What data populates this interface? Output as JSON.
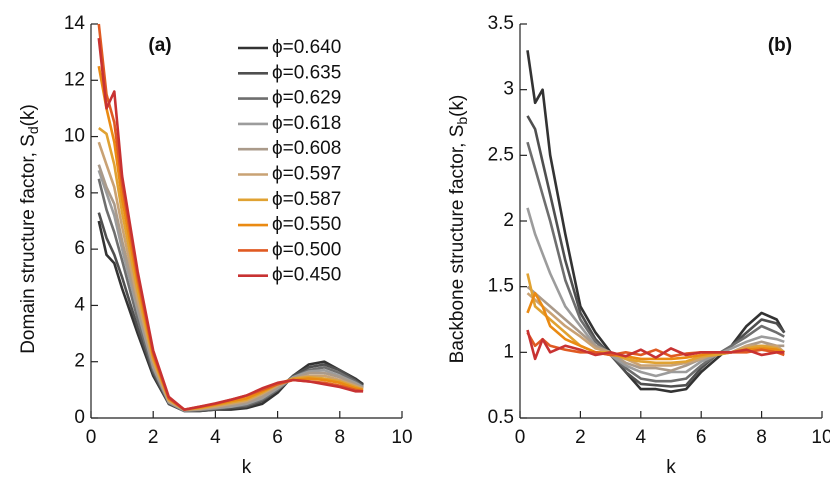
{
  "chart_data": [
    {
      "type": "line",
      "title": "(a)",
      "xlabel": "k",
      "ylabel": [
        "Domain structure factor, S",
        "d",
        "(k)"
      ],
      "xlim": [
        0,
        10
      ],
      "ylim": [
        0,
        14
      ],
      "xticks": [
        0,
        2,
        4,
        6,
        8,
        10
      ],
      "yticks": [
        0,
        2,
        4,
        6,
        8,
        10,
        12,
        14
      ],
      "x": [
        0.25,
        0.5,
        0.75,
        1,
        1.5,
        2,
        2.5,
        3,
        3.5,
        4,
        4.5,
        5,
        5.5,
        6,
        6.5,
        7,
        7.5,
        8,
        8.5,
        8.75
      ],
      "series": [
        {
          "name": "ϕ=0.640",
          "color": "#333333",
          "values": [
            7.0,
            5.8,
            5.5,
            4.6,
            3.0,
            1.5,
            0.5,
            0.25,
            0.25,
            0.3,
            0.3,
            0.35,
            0.5,
            0.9,
            1.5,
            1.9,
            2.0,
            1.7,
            1.4,
            1.2
          ]
        },
        {
          "name": "ϕ=0.635",
          "color": "#4f4f4f",
          "values": [
            7.3,
            6.4,
            5.8,
            5.0,
            3.2,
            1.6,
            0.5,
            0.25,
            0.25,
            0.3,
            0.35,
            0.4,
            0.6,
            1.0,
            1.5,
            1.8,
            1.9,
            1.7,
            1.35,
            1.15
          ]
        },
        {
          "name": "ϕ=0.629",
          "color": "#6e6e6e",
          "values": [
            8.5,
            7.4,
            6.6,
            5.6,
            3.5,
            1.7,
            0.55,
            0.25,
            0.28,
            0.33,
            0.4,
            0.45,
            0.65,
            1.0,
            1.45,
            1.7,
            1.8,
            1.6,
            1.3,
            1.1
          ]
        },
        {
          "name": "ϕ=0.618",
          "color": "#9c9c9c",
          "values": [
            8.8,
            8.0,
            7.2,
            6.0,
            3.8,
            1.8,
            0.55,
            0.27,
            0.3,
            0.35,
            0.4,
            0.5,
            0.7,
            1.05,
            1.45,
            1.65,
            1.7,
            1.5,
            1.25,
            1.1
          ]
        },
        {
          "name": "ϕ=0.608",
          "color": "#aa9a8a",
          "values": [
            9.0,
            8.2,
            7.6,
            6.3,
            4.0,
            1.9,
            0.6,
            0.28,
            0.3,
            0.38,
            0.45,
            0.55,
            0.75,
            1.1,
            1.4,
            1.6,
            1.6,
            1.45,
            1.2,
            1.05
          ]
        },
        {
          "name": "ϕ=0.597",
          "color": "#c9a274",
          "values": [
            9.8,
            9.0,
            8.2,
            6.8,
            4.2,
            2.0,
            0.6,
            0.3,
            0.33,
            0.4,
            0.5,
            0.6,
            0.85,
            1.15,
            1.4,
            1.5,
            1.5,
            1.35,
            1.15,
            1.05
          ]
        },
        {
          "name": "ϕ=0.587",
          "color": "#e0a232",
          "values": [
            10.3,
            10.1,
            9.0,
            7.3,
            4.5,
            2.1,
            0.65,
            0.3,
            0.35,
            0.45,
            0.55,
            0.65,
            0.9,
            1.2,
            1.4,
            1.45,
            1.4,
            1.3,
            1.1,
            1.0
          ]
        },
        {
          "name": "ϕ=0.550",
          "color": "#ea8a12",
          "values": [
            12.5,
            11.0,
            9.8,
            7.8,
            4.8,
            2.2,
            0.7,
            0.3,
            0.38,
            0.48,
            0.6,
            0.7,
            0.95,
            1.2,
            1.35,
            1.4,
            1.35,
            1.25,
            1.05,
            1.0
          ]
        },
        {
          "name": "ϕ=0.500",
          "color": "#e05a22",
          "values": [
            14.0,
            11.5,
            10.5,
            8.3,
            5.0,
            2.3,
            0.7,
            0.3,
            0.4,
            0.5,
            0.65,
            0.8,
            1.0,
            1.2,
            1.35,
            1.3,
            1.25,
            1.15,
            1.0,
            0.95
          ]
        },
        {
          "name": "ϕ=0.450",
          "color": "#c83232",
          "values": [
            13.5,
            11.0,
            11.6,
            8.6,
            5.2,
            2.4,
            0.75,
            0.3,
            0.4,
            0.52,
            0.65,
            0.8,
            1.05,
            1.25,
            1.35,
            1.3,
            1.2,
            1.1,
            0.95,
            0.95
          ]
        }
      ]
    },
    {
      "type": "line",
      "title": "(b)",
      "xlabel": "k",
      "ylabel": [
        "Backbone structure factor, S",
        "b",
        "(k)"
      ],
      "xlim": [
        0,
        10
      ],
      "ylim": [
        0.5,
        3.5
      ],
      "xticks": [
        0,
        2,
        4,
        6,
        8,
        10
      ],
      "yticks": [
        0.5,
        1,
        1.5,
        2,
        2.5,
        3,
        3.5
      ],
      "x": [
        0.25,
        0.5,
        0.75,
        1,
        1.5,
        2,
        2.5,
        3,
        3.5,
        4,
        4.5,
        5,
        5.5,
        6,
        6.5,
        7,
        7.5,
        8,
        8.5,
        8.75
      ],
      "series": [
        {
          "color": "#333333",
          "values": [
            3.3,
            2.9,
            3.0,
            2.5,
            1.9,
            1.35,
            1.15,
            1.0,
            0.85,
            0.72,
            0.72,
            0.7,
            0.72,
            0.85,
            0.95,
            1.05,
            1.2,
            1.3,
            1.25,
            1.15
          ]
        },
        {
          "color": "#4f4f4f",
          "values": [
            2.8,
            2.7,
            2.45,
            2.2,
            1.7,
            1.3,
            1.1,
            0.98,
            0.85,
            0.76,
            0.75,
            0.74,
            0.75,
            0.88,
            0.98,
            1.05,
            1.15,
            1.25,
            1.22,
            1.15
          ]
        },
        {
          "color": "#6e6e6e",
          "values": [
            2.6,
            2.4,
            2.2,
            2.0,
            1.55,
            1.25,
            1.08,
            0.98,
            0.88,
            0.8,
            0.78,
            0.78,
            0.8,
            0.9,
            0.98,
            1.05,
            1.12,
            1.2,
            1.15,
            1.12
          ]
        },
        {
          "color": "#9c9c9c",
          "values": [
            2.1,
            1.9,
            1.75,
            1.6,
            1.35,
            1.2,
            1.05,
            0.98,
            0.9,
            0.85,
            0.82,
            0.85,
            0.85,
            0.93,
            0.98,
            1.03,
            1.08,
            1.12,
            1.1,
            1.08
          ]
        },
        {
          "color": "#aa9a8a",
          "values": [
            1.5,
            1.45,
            1.4,
            1.35,
            1.25,
            1.15,
            1.05,
            1.0,
            0.92,
            0.88,
            0.88,
            0.86,
            0.9,
            0.95,
            0.98,
            1.0,
            1.05,
            1.08,
            1.05,
            1.05
          ]
        },
        {
          "color": "#c9a274",
          "values": [
            1.45,
            1.4,
            1.35,
            1.3,
            1.2,
            1.12,
            1.03,
            1.0,
            0.95,
            0.9,
            0.9,
            0.9,
            0.92,
            0.95,
            1.0,
            1.0,
            1.05,
            1.05,
            1.05,
            1.0
          ]
        },
        {
          "color": "#e0a232",
          "values": [
            1.6,
            1.35,
            1.3,
            1.25,
            1.15,
            1.05,
            1.0,
            1.0,
            0.95,
            0.93,
            0.92,
            0.92,
            0.93,
            0.97,
            0.98,
            1.0,
            1.03,
            1.05,
            1.03,
            1.0
          ]
        },
        {
          "color": "#ea8a12",
          "values": [
            1.3,
            1.45,
            1.35,
            1.2,
            1.1,
            1.05,
            1.0,
            0.98,
            0.97,
            0.95,
            0.95,
            0.95,
            0.96,
            0.98,
            1.0,
            1.0,
            1.02,
            1.03,
            1.02,
            1.0
          ]
        },
        {
          "color": "#e05a22",
          "values": [
            1.15,
            1.05,
            1.1,
            1.05,
            1.02,
            1.0,
            1.0,
            0.98,
            1.0,
            0.98,
            1.02,
            0.97,
            0.99,
            1.0,
            1.0,
            1.0,
            1.0,
            1.02,
            1.0,
            0.98
          ]
        },
        {
          "color": "#c83232",
          "values": [
            1.17,
            0.95,
            1.1,
            1.0,
            1.05,
            1.02,
            0.98,
            1.0,
            0.97,
            1.02,
            0.96,
            1.03,
            0.98,
            1.0,
            1.0,
            1.0,
            1.02,
            0.98,
            1.0,
            1.0
          ]
        }
      ]
    }
  ]
}
